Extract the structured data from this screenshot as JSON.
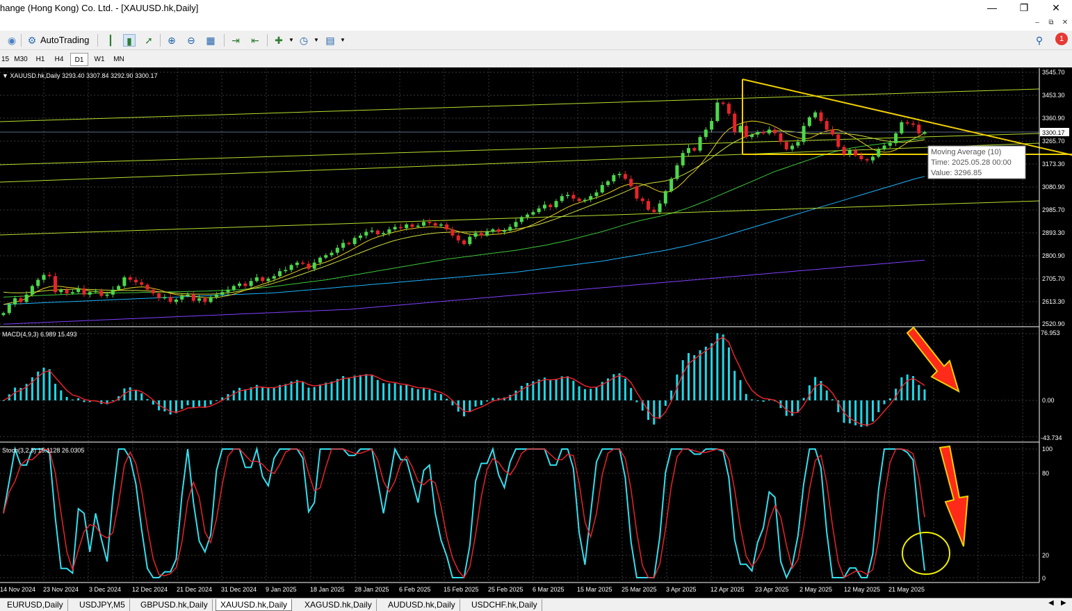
{
  "window": {
    "title": "hange (Hong Kong) Co. Ltd. - [XAUUSD.hk,Daily]"
  },
  "toolbar": {
    "autotrading": "AutoTrading",
    "notification_count": "1"
  },
  "timeframes": [
    "15",
    "M30",
    "H1",
    "H4",
    "D1",
    "W1",
    "MN"
  ],
  "active_timeframe": "D1",
  "chart_header": "XAUUSD.hk,Daily  3293.40 3307.84 3292.90 3300.17",
  "price_axis": [
    "3545.70",
    "3453.30",
    "3360.90",
    "3265.70",
    "3173.30",
    "3080.90",
    "2985.70",
    "2893.30",
    "2800.90",
    "2705.70",
    "2613.30",
    "2520.90"
  ],
  "current_price": "3300.17",
  "tooltip": {
    "line1": "Moving Average (10)",
    "line2": "Time: 2025.05.28 00:00",
    "line3": "Value: 3296.85"
  },
  "macd": {
    "label": "MACD(4,9,3) 6.989 15.493",
    "axis": [
      "76.953",
      "0.00",
      "-43.734"
    ]
  },
  "stoch": {
    "label": "Stoch(3,2,3) 15.1128 26.0305",
    "axis": [
      "100",
      "80",
      "20",
      "0"
    ]
  },
  "date_axis": [
    "14 Nov 2024",
    "23 Nov 2024",
    "3 Dec 2024",
    "12 Dec 2024",
    "21 Dec 2024",
    "31 Dec 2024",
    "9 Jan 2025",
    "18 Jan 2025",
    "28 Jan 2025",
    "6 Feb 2025",
    "15 Feb 2025",
    "25 Feb 2025",
    "6 Mar 2025",
    "15 Mar 2025",
    "25 Mar 2025",
    "3 Apr 2025",
    "12 Apr 2025",
    "23 Apr 2025",
    "2 May 2025",
    "12 May 2025",
    "21 May 2025"
  ],
  "tabs": [
    "EURUSD,Daily",
    "USDJPY,M5",
    "GBPUSD.hk,Daily",
    "XAUUSD.hk,Daily",
    "XAGUSD.hk,Daily",
    "AUDUSD.hk,Daily",
    "USDCHF.hk,Daily"
  ],
  "active_tab": "XAUUSD.hk,Daily",
  "colors": {
    "bull": "#4cd84c",
    "bear": "#e8232a",
    "macd_hist": "#1fd8e8",
    "signal": "#e8232a",
    "stoch_main": "#33e0f0",
    "stoch_signal": "#e8232a",
    "ma10": "#e8d020",
    "ma20": "#d0e040",
    "ma50": "#3cc83c",
    "ma100": "#1eb4ff",
    "ma200": "#8040ff",
    "trend": "#f0d000",
    "arrow": "#ff2a1a"
  },
  "chart_data": {
    "type": "candlestick",
    "title": "XAUUSD.hk,Daily",
    "ylim": [
      2520.9,
      3545.7
    ],
    "x_start": "2024-11-11",
    "x_end": "2025-05-28",
    "ohlc_last": {
      "open": 3293.4,
      "high": 3307.84,
      "low": 3292.9,
      "close": 3300.17
    },
    "close": [
      2565,
      2600,
      2625,
      2610,
      2640,
      2675,
      2700,
      2720,
      2715,
      2650,
      2660,
      2645,
      2650,
      2665,
      2640,
      2650,
      2655,
      2635,
      2640,
      2660,
      2675,
      2710,
      2700,
      2690,
      2680,
      2660,
      2645,
      2625,
      2630,
      2610,
      2620,
      2635,
      2640,
      2615,
      2625,
      2610,
      2630,
      2640,
      2650,
      2660,
      2675,
      2685,
      2675,
      2695,
      2710,
      2695,
      2705,
      2715,
      2735,
      2740,
      2760,
      2770,
      2765,
      2745,
      2770,
      2790,
      2800,
      2810,
      2830,
      2850,
      2845,
      2870,
      2880,
      2895,
      2900,
      2885,
      2890,
      2905,
      2915,
      2910,
      2925,
      2915,
      2920,
      2935,
      2930,
      2920,
      2925,
      2905,
      2880,
      2860,
      2845,
      2875,
      2890,
      2880,
      2895,
      2905,
      2895,
      2900,
      2915,
      2935,
      2955,
      2965,
      2975,
      2990,
      3005,
      2995,
      3020,
      3040,
      3045,
      3030,
      3020,
      3025,
      3040,
      3055,
      3085,
      3100,
      3125,
      3130,
      3110,
      3080,
      3030,
      3020,
      2985,
      2975,
      3010,
      3060,
      3110,
      3165,
      3215,
      3235,
      3225,
      3280,
      3310,
      3345,
      3420,
      3415,
      3375,
      3300,
      3325,
      3280,
      3290,
      3300,
      3295,
      3310,
      3295,
      3260,
      3230,
      3245,
      3260,
      3325,
      3360,
      3380,
      3345,
      3310,
      3290,
      3240,
      3210,
      3225,
      3205,
      3190,
      3185,
      3200,
      3230,
      3245,
      3255,
      3295,
      3340,
      3335,
      3330,
      3295,
      3300
    ],
    "ma10": [
      2600,
      2605,
      2610,
      2615,
      2625,
      2640,
      2655,
      2665,
      2672,
      2675,
      2673,
      2670,
      2668,
      2665,
      2660,
      2655,
      2652,
      2650,
      2648,
      2652,
      2658,
      2663,
      2667,
      2670,
      2671,
      2670,
      2665,
      2660,
      2652,
      2645,
      2640,
      2637,
      2635,
      2632,
      2630,
      2628,
      2627,
      2628,
      2632,
      2636,
      2642,
      2650,
      2658,
      2666,
      2674,
      2682,
      2690,
      2698,
      2707,
      2716,
      2725,
      2735,
      2745,
      2752,
      2758,
      2765,
      2772,
      2781,
      2792,
      2804,
      2816,
      2829,
      2842,
      2855,
      2866,
      2874,
      2881,
      2888,
      2895,
      2900,
      2905,
      2908,
      2911,
      2913,
      2915,
      2915,
      2913,
      2910,
      2904,
      2897,
      2890,
      2885,
      2882,
      2882,
      2882,
      2884,
      2886,
      2889,
      2893,
      2898,
      2906,
      2915,
      2925,
      2936,
      2947,
      2958,
      2970,
      2983,
      2995,
      3005,
      3013,
      3020,
      3027,
      3034,
      3042,
      3052,
      3063,
      3075,
      3084,
      3090,
      3092,
      3088,
      3080,
      3068,
      3058,
      3055,
      3060,
      3075,
      3095,
      3120,
      3140,
      3165,
      3195,
      3225,
      3260,
      3290,
      3312,
      3325,
      3335,
      3342,
      3345,
      3343,
      3338,
      3332,
      3322,
      3310,
      3295,
      3285,
      3277,
      3272,
      3275,
      3285,
      3297,
      3305,
      3310,
      3309,
      3300,
      3288,
      3275,
      3260,
      3245,
      3230,
      3222,
      3218,
      3220,
      3228,
      3242,
      3258,
      3272,
      3283,
      3297
    ],
    "ma20": [
      2650,
      2648,
      2647,
      2647,
      2648,
      2650,
      2652,
      2655,
      2657,
      2659,
      2660,
      2661,
      2662,
      2662,
      2662,
      2661,
      2660,
      2659,
      2658,
      2657,
      2657,
      2657,
      2657,
      2657,
      2656,
      2655,
      2654,
      2652,
      2650,
      2648,
      2646,
      2644,
      2643,
      2642,
      2642,
      2642,
      2642,
      2643,
      2645,
      2647,
      2650,
      2654,
      2658,
      2663,
      2668,
      2674,
      2680,
      2687,
      2694,
      2701,
      2708,
      2716,
      2724,
      2732,
      2740,
      2748,
      2756,
      2765,
      2774,
      2783,
      2792,
      2801,
      2810,
      2819,
      2828,
      2837,
      2845,
      2853,
      2860,
      2866,
      2871,
      2876,
      2880,
      2884,
      2887,
      2890,
      2892,
      2893,
      2894,
      2894,
      2894,
      2894,
      2894,
      2895,
      2896,
      2897,
      2899,
      2901,
      2903,
      2906,
      2910,
      2914,
      2919,
      2925,
      2932,
      2940,
      2948,
      2957,
      2966,
      2975,
      2984,
      2993,
      3002,
      3011,
      3020,
      3029,
      3038,
      3048,
      3058,
      3068,
      3077,
      3085,
      3091,
      3095,
      3098,
      3102,
      3108,
      3116,
      3126,
      3138,
      3151,
      3165,
      3180,
      3196,
      3213,
      3230,
      3246,
      3260,
      3272,
      3282,
      3290,
      3296,
      3300,
      3303,
      3305,
      3305,
      3304,
      3302,
      3299,
      3296,
      3294,
      3293,
      3293,
      3294,
      3295,
      3295,
      3294,
      3292,
      3289,
      3285,
      3280,
      3275,
      3270,
      3265,
      3262,
      3260,
      3259,
      3260,
      3262,
      3265,
      3269
    ],
    "ma50": [
      2630,
      2631,
      2632,
      2633,
      2634,
      2635,
      2636,
      2637,
      2638,
      2639,
      2640,
      2641,
      2642,
      2643,
      2643,
      2644,
      2645,
      2645,
      2646,
      2646,
      2647,
      2647,
      2648,
      2648,
      2649,
      2649,
      2650,
      2650,
      2651,
      2651,
      2652,
      2652,
      2653,
      2653,
      2654,
      2654,
      2655,
      2656,
      2657,
      2658,
      2659,
      2660,
      2662,
      2664,
      2666,
      2668,
      2670,
      2673,
      2676,
      2679,
      2682,
      2685,
      2688,
      2691,
      2694,
      2697,
      2700,
      2704,
      2708,
      2712,
      2716,
      2720,
      2724,
      2728,
      2732,
      2736,
      2740,
      2744,
      2748,
      2752,
      2756,
      2760,
      2764,
      2768,
      2772,
      2776,
      2780,
      2784,
      2787,
      2790,
      2793,
      2796,
      2799,
      2802,
      2805,
      2808,
      2811,
      2814,
      2817,
      2820,
      2824,
      2828,
      2832,
      2836,
      2840,
      2845,
      2850,
      2855,
      2860,
      2866,
      2872,
      2878,
      2884,
      2890,
      2896,
      2903,
      2910,
      2917,
      2924,
      2931,
      2937,
      2943,
      2948,
      2953,
      2958,
      2964,
      2970,
      2977,
      2985,
      2993,
      3002,
      3011,
      3020,
      3030,
      3040,
      3050,
      3060,
      3070,
      3080,
      3090,
      3100,
      3110,
      3120,
      3130,
      3140,
      3148,
      3156,
      3164,
      3172,
      3180,
      3188,
      3196,
      3204,
      3211,
      3218,
      3224,
      3229,
      3234,
      3238,
      3242,
      3245,
      3248,
      3251,
      3254,
      3257,
      3260,
      3263,
      3266,
      3269,
      3272,
      3275
    ],
    "ma100": [
      2600,
      2601,
      2602,
      2603,
      2604,
      2605,
      2606,
      2607,
      2608,
      2609,
      2610,
      2611,
      2612,
      2613,
      2614,
      2615,
      2616,
      2617,
      2618,
      2619,
      2620,
      2621,
      2622,
      2623,
      2624,
      2625,
      2626,
      2627,
      2628,
      2629,
      2630,
      2631,
      2632,
      2633,
      2634,
      2635,
      2636,
      2637,
      2638,
      2639,
      2640,
      2641,
      2642,
      2643,
      2644,
      2645,
      2646,
      2647,
      2649,
      2651,
      2653,
      2655,
      2657,
      2659,
      2661,
      2663,
      2665,
      2667,
      2669,
      2671,
      2673,
      2675,
      2677,
      2679,
      2681,
      2683,
      2685,
      2687,
      2689,
      2691,
      2693,
      2695,
      2697,
      2699,
      2701,
      2703,
      2705,
      2707,
      2709,
      2711,
      2713,
      2715,
      2717,
      2719,
      2721,
      2723,
      2725,
      2727,
      2729,
      2731,
      2734,
      2737,
      2740,
      2743,
      2746,
      2749,
      2752,
      2755,
      2758,
      2761,
      2764,
      2767,
      2770,
      2773,
      2776,
      2780,
      2784,
      2788,
      2792,
      2796,
      2800,
      2804,
      2808,
      2812,
      2816,
      2820,
      2825,
      2830,
      2835,
      2840,
      2846,
      2852,
      2858,
      2864,
      2870,
      2877,
      2884,
      2891,
      2898,
      2905,
      2912,
      2919,
      2926,
      2933,
      2940,
      2947,
      2954,
      2961,
      2968,
      2975,
      2982,
      2989,
      2996,
      3003,
      3010,
      3017,
      3024,
      3031,
      3038,
      3045,
      3052,
      3059,
      3066,
      3073,
      3080,
      3087,
      3094,
      3101,
      3108,
      3114,
      3120
    ],
    "ma200": [
      2520,
      2521,
      2522,
      2523,
      2524,
      2525,
      2526,
      2527,
      2528,
      2529,
      2530,
      2531,
      2532,
      2533,
      2534,
      2535,
      2536,
      2537,
      2538,
      2539,
      2540,
      2541,
      2542,
      2543,
      2544,
      2545,
      2546,
      2547,
      2548,
      2549,
      2550,
      2551,
      2552,
      2553,
      2554,
      2555,
      2556,
      2557,
      2558,
      2559,
      2560,
      2561,
      2562,
      2563,
      2564,
      2565,
      2566,
      2567,
      2568,
      2569,
      2570,
      2571,
      2572,
      2573,
      2574,
      2575,
      2576,
      2577,
      2578,
      2579,
      2580,
      2582,
      2584,
      2586,
      2588,
      2590,
      2592,
      2594,
      2596,
      2598,
      2600,
      2602,
      2604,
      2606,
      2608,
      2610,
      2612,
      2614,
      2616,
      2618,
      2620,
      2622,
      2624,
      2626,
      2628,
      2630,
      2632,
      2634,
      2636,
      2638,
      2640,
      2642,
      2644,
      2646,
      2648,
      2650,
      2652,
      2654,
      2656,
      2658,
      2660,
      2662,
      2664,
      2666,
      2668,
      2670,
      2672,
      2674,
      2676,
      2678,
      2680,
      2682,
      2684,
      2686,
      2688,
      2690,
      2692,
      2694,
      2696,
      2698,
      2700,
      2702,
      2704,
      2706,
      2708,
      2710,
      2712,
      2714,
      2716,
      2718,
      2720,
      2722,
      2724,
      2726,
      2728,
      2730,
      2732,
      2734,
      2736,
      2738,
      2740,
      2742,
      2744,
      2746,
      2748,
      2750,
      2752,
      2754,
      2756,
      2758,
      2760,
      2762,
      2764,
      2766,
      2768,
      2770,
      2772,
      2774,
      2776,
      2778,
      2780
    ]
  }
}
